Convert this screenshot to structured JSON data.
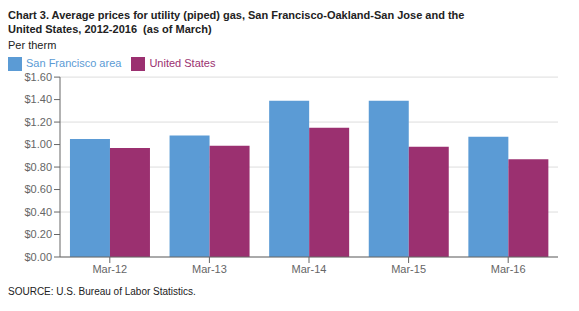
{
  "chart_data": {
    "type": "bar",
    "title": "Chart 3. Average prices for utility (piped) gas, San Francisco-Oakland-San Jose and the",
    "subtitle": "United States, 2012-2016  (as of March)",
    "ylabel": "Per therm",
    "categories": [
      "Mar-12",
      "Mar-13",
      "Mar-14",
      "Mar-15",
      "Mar-16"
    ],
    "series": [
      {
        "name": "San Francisco area",
        "color": "#5B9BD5",
        "values": [
          1.05,
          1.08,
          1.39,
          1.39,
          1.07
        ]
      },
      {
        "name": "United States",
        "color": "#9B3070",
        "values": [
          0.97,
          0.99,
          1.15,
          0.98,
          0.87
        ]
      }
    ],
    "ylim": [
      0,
      1.6
    ],
    "yticks": [
      {
        "value": 0,
        "label": "$0.00"
      },
      {
        "value": 0.2,
        "label": "$0.20"
      },
      {
        "value": 0.4,
        "label": "$0.40"
      },
      {
        "value": 0.6,
        "label": "$0.60"
      },
      {
        "value": 0.8,
        "label": "$0.80"
      },
      {
        "value": 1.0,
        "label": "$1.00"
      },
      {
        "value": 1.2,
        "label": "$1.20"
      },
      {
        "value": 1.4,
        "label": "$1.40"
      },
      {
        "value": 1.6,
        "label": "$1.60"
      }
    ],
    "grid": true,
    "legend": "top-left",
    "annotations": [
      "SOURCE: U.S. Bureau of Labor Statistics."
    ]
  }
}
